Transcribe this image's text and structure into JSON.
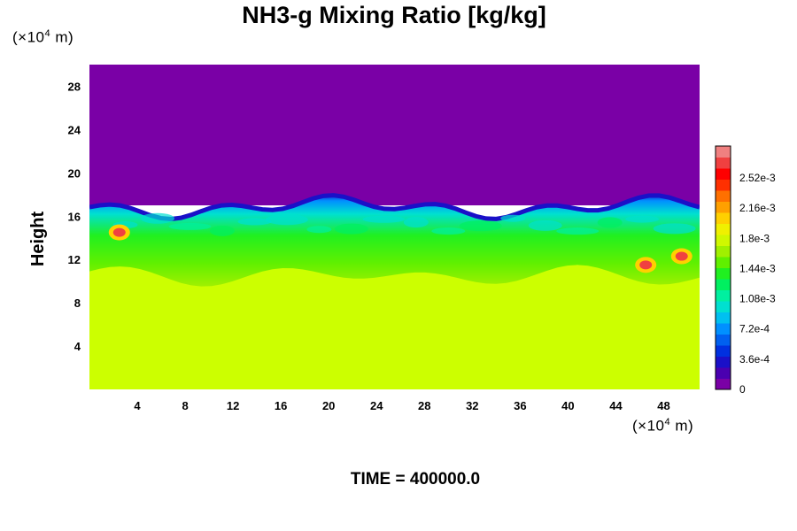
{
  "chart_data": {
    "type": "heatmap",
    "title": "NH3-g Mixing Ratio [kg/kg]",
    "ylabel": "Height",
    "x_unit_prefix": "(×10",
    "x_unit_exp": "4",
    "x_unit_suffix": " m)",
    "y_unit_prefix": "(×10",
    "y_unit_exp": "4",
    "y_unit_suffix": " m)",
    "footer": "TIME = 400000.0",
    "xlim": [
      0,
      51
    ],
    "ylim": [
      0,
      30
    ],
    "x_ticks": [
      4,
      8,
      12,
      16,
      20,
      24,
      28,
      32,
      36,
      40,
      44,
      48
    ],
    "y_ticks": [
      4,
      8,
      12,
      16,
      20,
      24,
      28
    ],
    "colorbar": {
      "range": [
        0,
        0.0029
      ],
      "ticks": [
        {
          "value": 0,
          "label": "0"
        },
        {
          "value": 0.00036,
          "label": "3.6e-4"
        },
        {
          "value": 0.00072,
          "label": "7.2e-4"
        },
        {
          "value": 0.00108,
          "label": "1.08e-3"
        },
        {
          "value": 0.00144,
          "label": "1.44e-3"
        },
        {
          "value": 0.0018,
          "label": "1.8e-3"
        },
        {
          "value": 0.00216,
          "label": "2.16e-3"
        },
        {
          "value": 0.00252,
          "label": "2.52e-3"
        }
      ],
      "colors": [
        "#7a00a6",
        "#4a00b0",
        "#1a10c8",
        "#0030e0",
        "#0060f0",
        "#0090ff",
        "#00c0f0",
        "#00e0d0",
        "#00f0a0",
        "#00f060",
        "#20f020",
        "#60f000",
        "#a0f000",
        "#d0f800",
        "#f0f000",
        "#ffd000",
        "#ffa000",
        "#ff7000",
        "#ff3000",
        "#ff0000",
        "#f04040",
        "#f08080"
      ]
    },
    "field": {
      "upper_layer": {
        "height_range": [
          17,
          30
        ],
        "value": 0,
        "color": "#7a00a6"
      },
      "mixed_layer": {
        "height_range": [
          10.5,
          17
        ],
        "value_range": [
          0.0004,
          0.0017
        ]
      },
      "lower_layer": {
        "height_range": [
          0,
          10.5
        ],
        "value": 0.0018,
        "color": "#ccff00"
      },
      "hot_spots": [
        {
          "x": 2.5,
          "y": 14.5,
          "value": 0.0027
        },
        {
          "x": 46.5,
          "y": 11.5,
          "value": 0.0027
        },
        {
          "x": 49.5,
          "y": 12.3,
          "value": 0.0027
        }
      ]
    }
  }
}
